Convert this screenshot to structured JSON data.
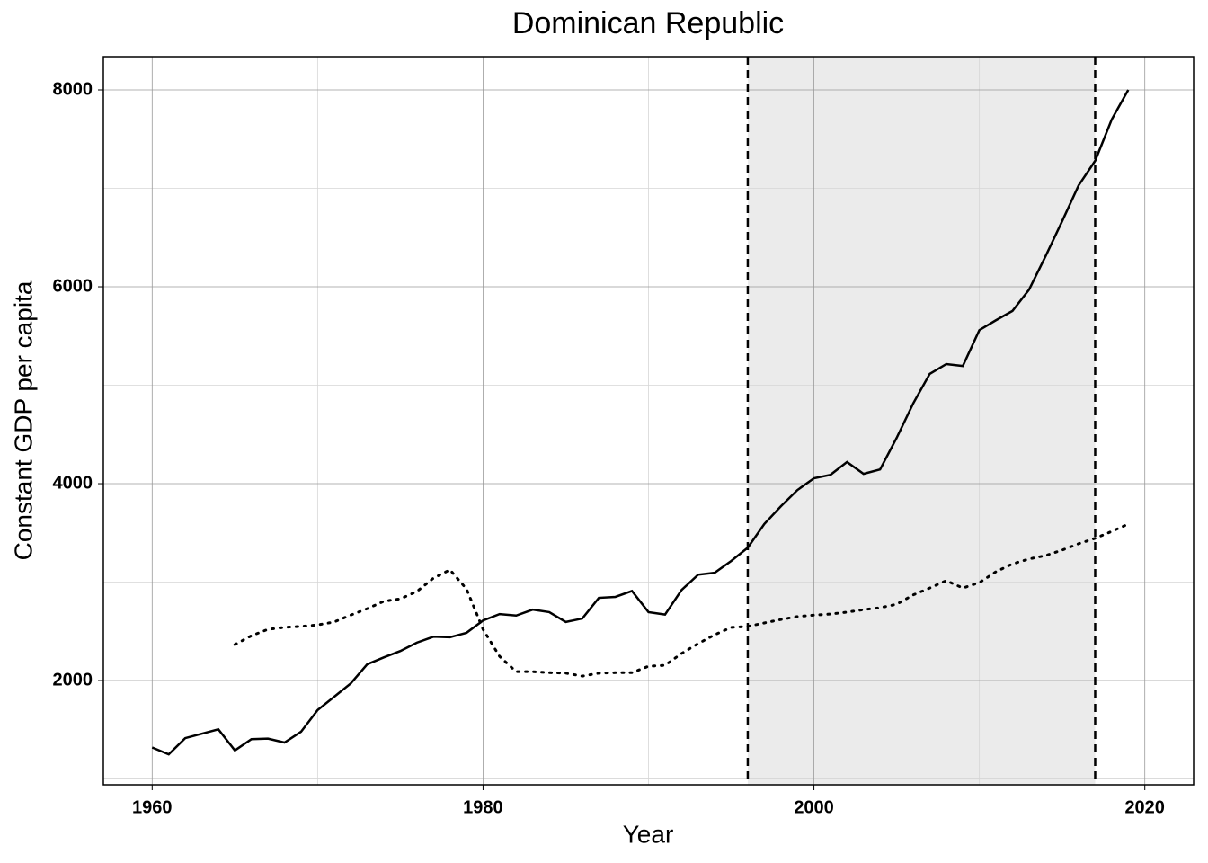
{
  "chart_data": {
    "type": "line",
    "title": "Dominican Republic",
    "x_label": "Year",
    "y_label": "Constant GDP per capita",
    "x": [
      1960,
      1961,
      1962,
      1963,
      1964,
      1965,
      1966,
      1967,
      1968,
      1969,
      1970,
      1971,
      1972,
      1973,
      1974,
      1975,
      1976,
      1977,
      1978,
      1979,
      1980,
      1981,
      1982,
      1983,
      1984,
      1985,
      1986,
      1987,
      1988,
      1989,
      1990,
      1991,
      1992,
      1993,
      1994,
      1995,
      1996,
      1997,
      1998,
      1999,
      2000,
      2001,
      2002,
      2003,
      2004,
      2005,
      2006,
      2007,
      2008,
      2009,
      2010,
      2011,
      2012,
      2013,
      2014,
      2015,
      2016,
      2017,
      2018,
      2019
    ],
    "series": [
      {
        "color": "#000000",
        "dash": "solid",
        "values": [
          1320,
          1250,
          1415,
          1460,
          1505,
          1290,
          1405,
          1410,
          1370,
          1480,
          1700,
          1835,
          1970,
          2165,
          2235,
          2300,
          2385,
          2445,
          2440,
          2485,
          2610,
          2675,
          2660,
          2720,
          2695,
          2595,
          2630,
          2840,
          2850,
          2910,
          2695,
          2670,
          2920,
          3075,
          3095,
          3215,
          3350,
          3590,
          3770,
          3935,
          4055,
          4090,
          4220,
          4100,
          4145,
          4465,
          4815,
          5115,
          5215,
          5195,
          5560,
          5660,
          5755,
          5970,
          6310,
          6665,
          7030,
          7280,
          7700,
          8000
        ]
      },
      {
        "color": "#000000",
        "dash": "dotted",
        "values": [
          null,
          null,
          null,
          null,
          null,
          2365,
          2455,
          2520,
          2540,
          2550,
          2565,
          2595,
          2665,
          2730,
          2805,
          2830,
          2905,
          3040,
          3125,
          2930,
          2520,
          2245,
          2090,
          2090,
          2080,
          2075,
          2045,
          2075,
          2080,
          2080,
          2145,
          2155,
          2275,
          2375,
          2465,
          2540,
          2550,
          2585,
          2620,
          2650,
          2665,
          2675,
          2695,
          2720,
          2740,
          2775,
          2870,
          2940,
          3015,
          2940,
          2995,
          3105,
          3185,
          3235,
          3270,
          3325,
          3390,
          3445,
          3515,
          3590
        ]
      }
    ],
    "shade": [
      1996,
      2017
    ],
    "shade_color": "#ebebeb",
    "xlim": [
      1957.05,
      2022.95
    ],
    "ylim": [
      941,
      8338
    ],
    "xticks": [
      1960,
      1980,
      2000,
      2020
    ],
    "yticks": [
      2000,
      4000,
      6000,
      8000
    ],
    "x_minor_grid": [
      1970,
      1990,
      2010
    ],
    "y_minor_grid": [
      1000,
      3000,
      5000,
      7000
    ],
    "grid": true
  }
}
